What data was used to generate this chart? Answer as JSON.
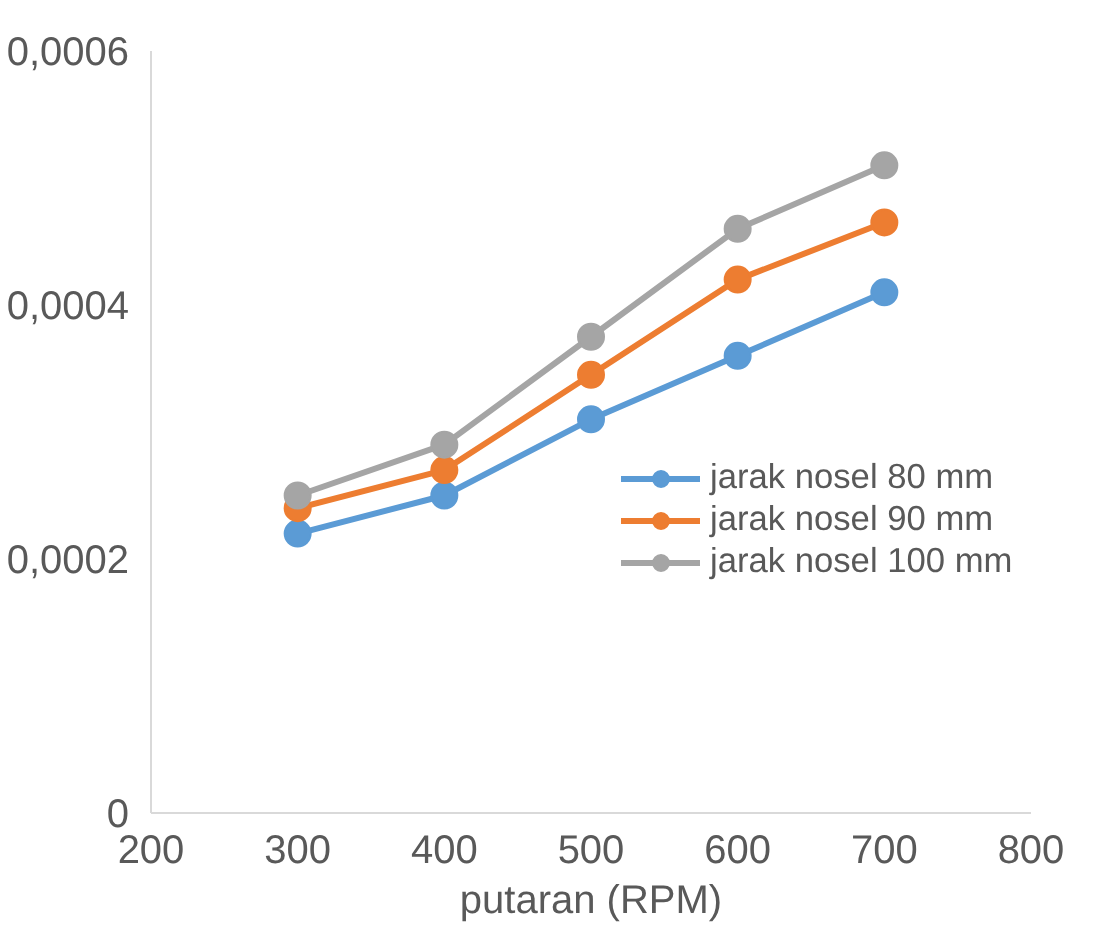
{
  "chart_data": {
    "type": "line",
    "xlabel": "putaran (RPM)",
    "x": [
      300,
      400,
      500,
      600,
      700
    ],
    "series": [
      {
        "name": "jarak nosel 80 mm",
        "color": "#5b9bd5",
        "values": [
          0.00022,
          0.00025,
          0.00031,
          0.00036,
          0.00041
        ]
      },
      {
        "name": "jarak nosel 90 mm",
        "color": "#ed7d31",
        "values": [
          0.00024,
          0.00027,
          0.000345,
          0.00042,
          0.000465
        ]
      },
      {
        "name": "jarak nosel 100 mm",
        "color": "#a5a5a5",
        "values": [
          0.00025,
          0.00029,
          0.000375,
          0.00046,
          0.00051
        ]
      }
    ],
    "xlim": [
      200,
      800
    ],
    "xticks": [
      200,
      300,
      400,
      500,
      600,
      700,
      800
    ],
    "ylim": [
      0,
      0.0006
    ],
    "yticks": [
      {
        "value": 0,
        "label": "0"
      },
      {
        "value": 0.0002,
        "label": "0,0002"
      },
      {
        "value": 0.0004,
        "label": "0,0004"
      },
      {
        "value": 0.0006,
        "label": "0,0006"
      }
    ],
    "grid": false,
    "legend": "right",
    "marker": "circle",
    "line_style": "solid"
  }
}
